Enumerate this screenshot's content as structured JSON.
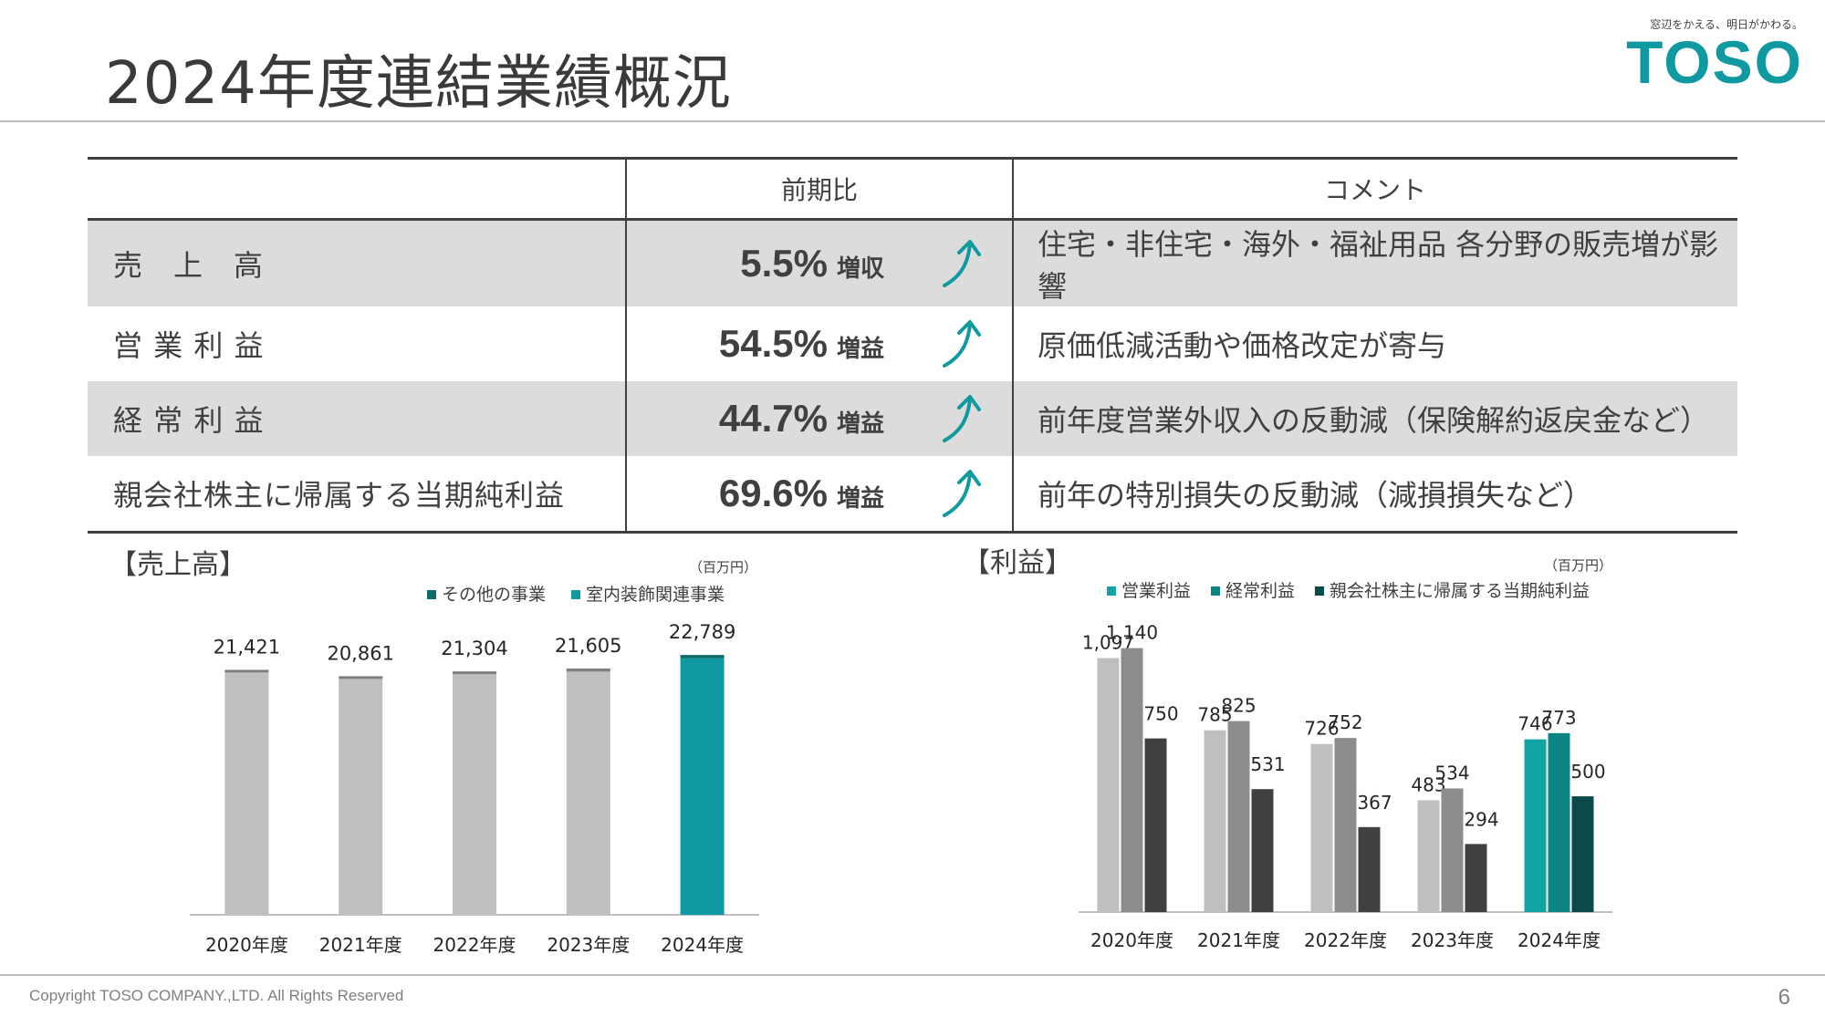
{
  "slide": {
    "title": "2024年度連結業績概況",
    "page_number": "6",
    "copyright": "Copyright TOSO COMPANY.,LTD. All Rights Reserved"
  },
  "logo": {
    "tagline": "窓辺をかえる、明日がかわる。",
    "wordmark": "TOSO",
    "color": "#0e9aa0"
  },
  "summary_table": {
    "headers": [
      "",
      "前期比",
      "コメント"
    ],
    "rows": [
      {
        "label": "売　上　高",
        "value": "5.5%",
        "change": "増収",
        "arrow": "up-arrow",
        "comment": "住宅・非住宅・海外・福祉用品 各分野の販売増が影響"
      },
      {
        "label": "営 業 利 益",
        "value": "54.5%",
        "change": "増益",
        "arrow": "up-arrow",
        "comment": "原価低減活動や価格改定が寄与"
      },
      {
        "label": "経 常 利 益",
        "value": "44.7%",
        "change": "増益",
        "arrow": "up-arrow",
        "comment": "前年度営業外収入の反動減（保険解約返戻金など）"
      },
      {
        "label": "親会社株主に帰属する当期純利益",
        "value": "69.6%",
        "change": "増益",
        "arrow": "up-arrow",
        "comment": "前年の特別損失の反動減（減損損失など）"
      }
    ]
  },
  "chart_data": [
    {
      "type": "bar",
      "stacked": true,
      "title": "【売上高】",
      "unit": "（百万円）",
      "categories": [
        "2020年度",
        "2021年度",
        "2022年度",
        "2023年度",
        "2024年度"
      ],
      "series": [
        {
          "name": "室内装飾関連事業",
          "values": [
            21250,
            20690,
            21110,
            21330,
            22500
          ]
        },
        {
          "name": "その他の事業",
          "values": [
            171,
            171,
            194,
            275,
            289
          ]
        }
      ],
      "totals": [
        "21,421",
        "20,861",
        "21,304",
        "21,605",
        "22,789"
      ],
      "ylim": [
        0,
        24000
      ],
      "legend": "top-right",
      "colors": {
        "past_main": "#bfbfbf",
        "past_other": "#7f7f7f",
        "current_main": "#0e9aa0",
        "current_other": "#0d6b6b"
      }
    },
    {
      "type": "bar",
      "stacked": false,
      "title": "【利益】",
      "unit": "（百万円）",
      "categories": [
        "2020年度",
        "2021年度",
        "2022年度",
        "2023年度",
        "2024年度"
      ],
      "series": [
        {
          "name": "営業利益",
          "values": [
            1097,
            785,
            726,
            483,
            746
          ],
          "labels": [
            "1,097",
            "785",
            "726",
            "483",
            "746"
          ]
        },
        {
          "name": "経常利益",
          "values": [
            1140,
            825,
            752,
            534,
            773
          ],
          "labels": [
            "1,140",
            "825",
            "752",
            "534",
            "773"
          ]
        },
        {
          "name": "親会社株主に帰属する当期純利益",
          "values": [
            750,
            531,
            367,
            294,
            500
          ],
          "labels": [
            "750",
            "531",
            "367",
            "294",
            "500"
          ]
        }
      ],
      "ylim": [
        0,
        1300
      ],
      "legend": "top",
      "colors": {
        "past": [
          "#bfbfbf",
          "#8c8c8c",
          "#404040"
        ],
        "current": [
          "#12a3a5",
          "#0e8585",
          "#0b4a4a"
        ],
        "legend": [
          "#12a3a5",
          "#0e8585",
          "#0b4a4a"
        ]
      }
    }
  ]
}
